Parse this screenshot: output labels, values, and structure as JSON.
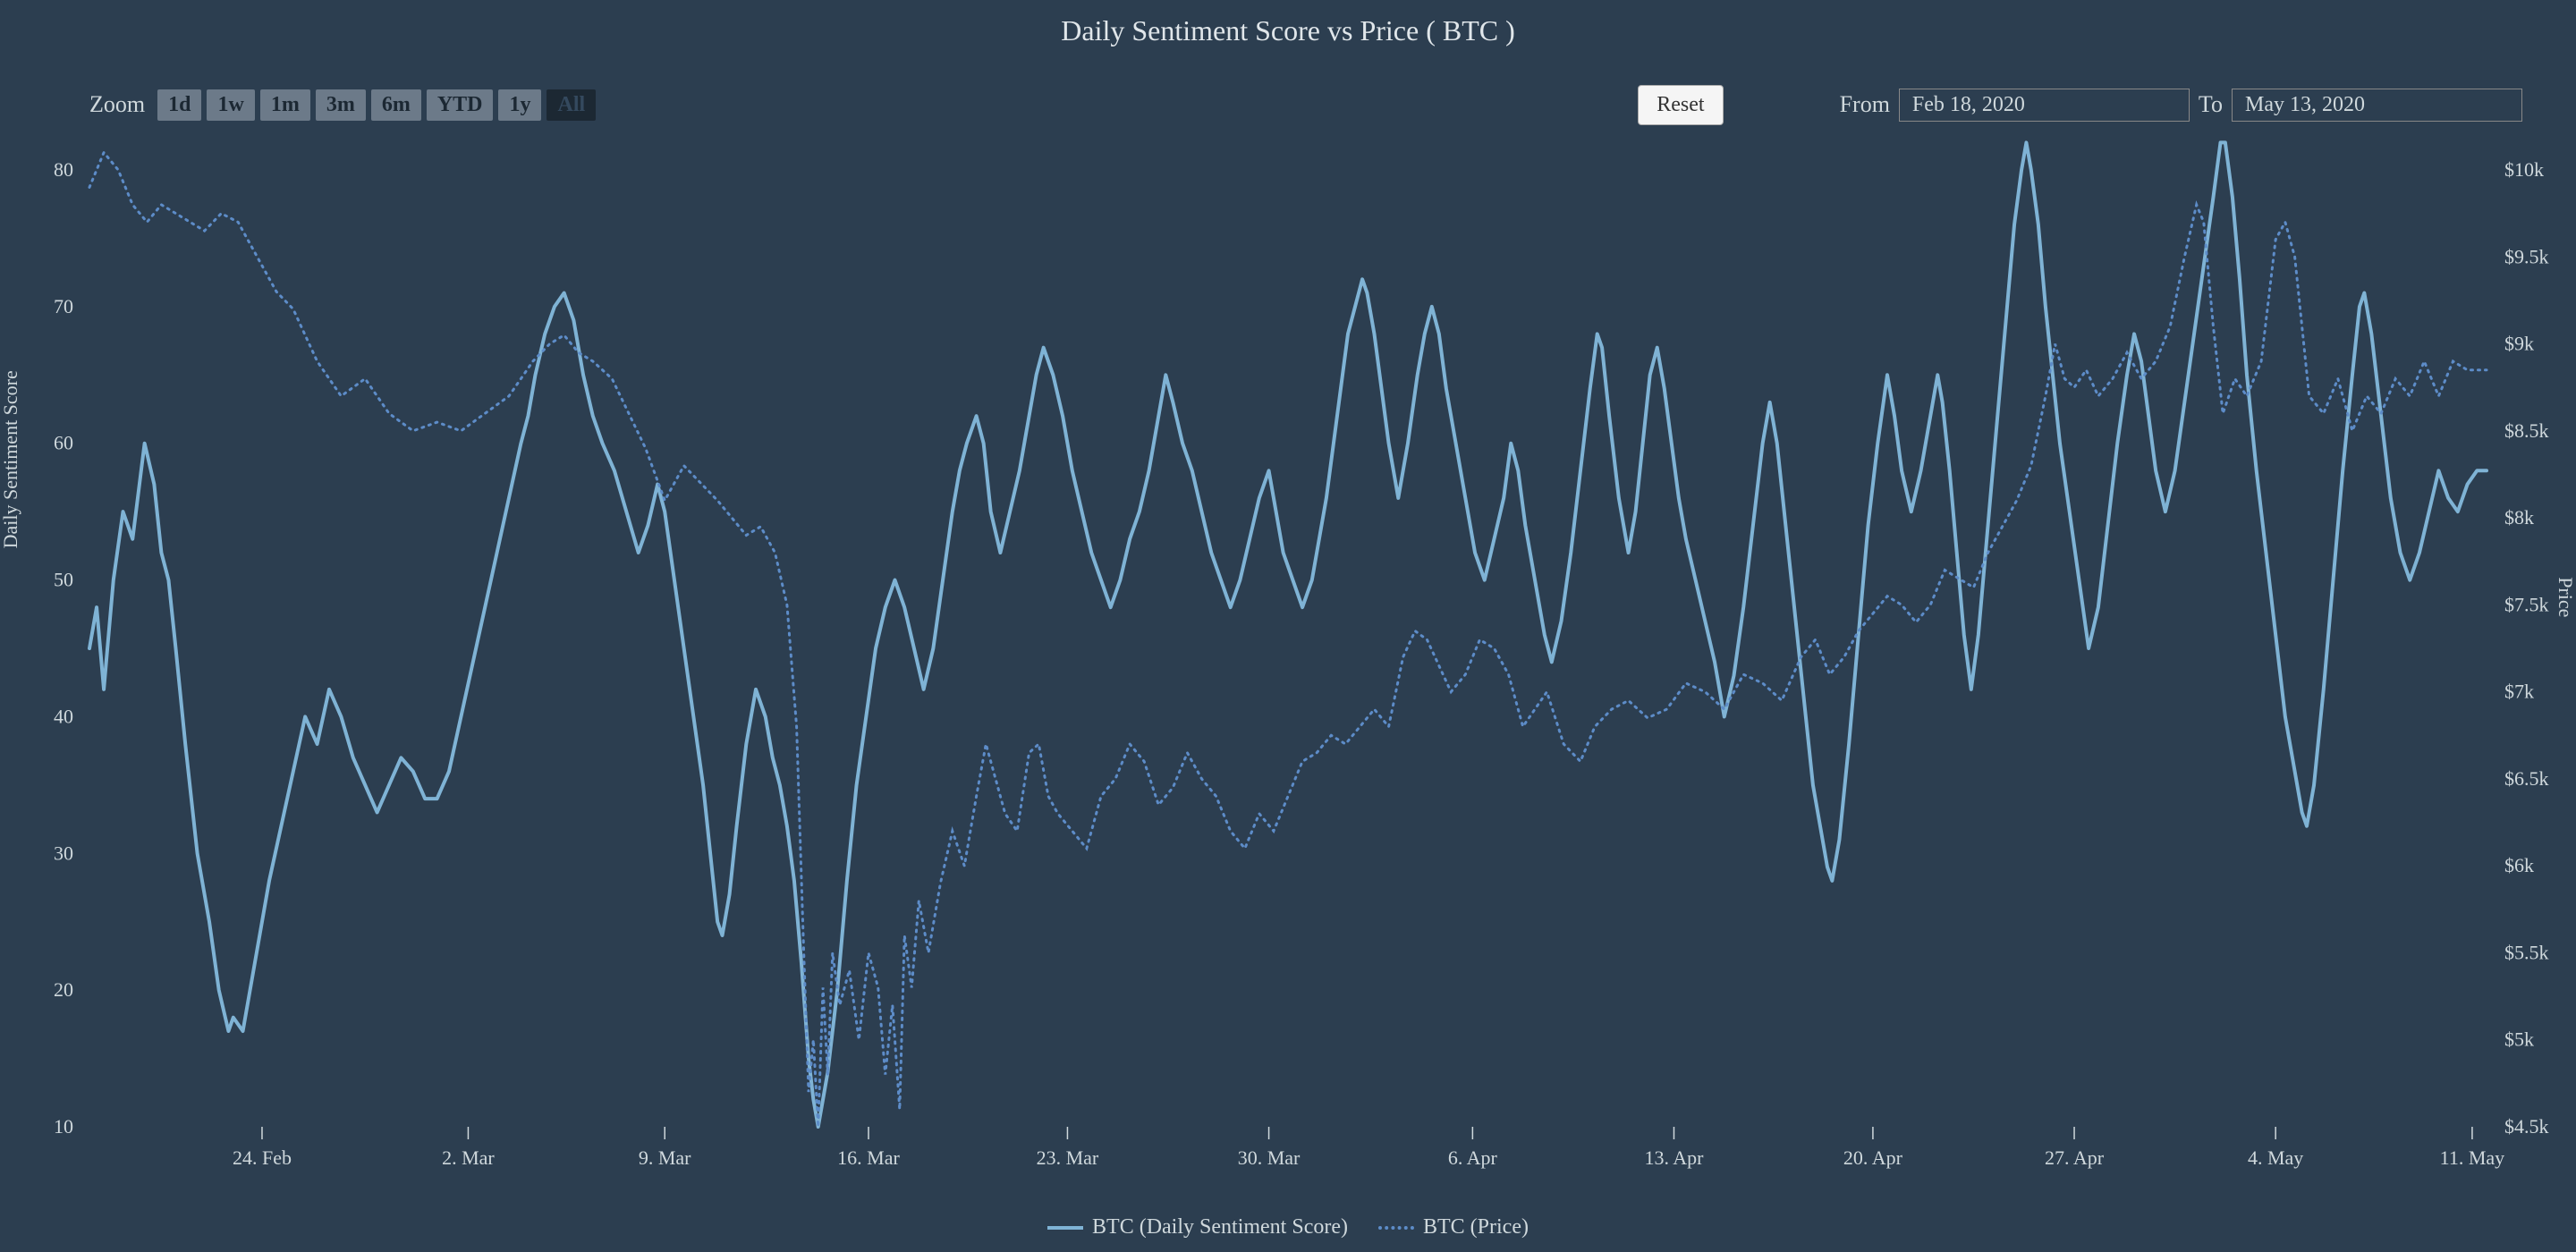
{
  "title": "Daily Sentiment Score vs Price ( BTC )",
  "zoom": {
    "label": "Zoom",
    "buttons": [
      "1d",
      "1w",
      "1m",
      "3m",
      "6m",
      "YTD",
      "1y",
      "All"
    ],
    "active_index": 7
  },
  "reset_label": "Reset",
  "date_range": {
    "from_label": "From",
    "to_label": "To",
    "from_value": "Feb 18, 2020",
    "to_value": "May 13, 2020"
  },
  "y_left": {
    "label": "Daily Sentiment Score",
    "min": 10,
    "max": 80,
    "ticks": [
      10,
      20,
      30,
      40,
      50,
      60,
      70,
      80
    ]
  },
  "y_right": {
    "label": "Price",
    "min": 4500,
    "max": 10000,
    "ticks": [
      4500,
      5000,
      5500,
      6000,
      6500,
      7000,
      7500,
      8000,
      8500,
      9000,
      9500,
      10000
    ],
    "tick_labels": [
      "$4.5k",
      "$5k",
      "$5.5k",
      "$6k",
      "$6.5k",
      "$7k",
      "$7.5k",
      "$8k",
      "$8.5k",
      "$9k",
      "$9.5k",
      "$10k"
    ]
  },
  "x_axis": {
    "tick_positions": [
      0.072,
      0.158,
      0.24,
      0.325,
      0.408,
      0.492,
      0.577,
      0.661,
      0.744,
      0.828,
      0.912,
      0.994
    ],
    "tick_labels": [
      "24. Feb",
      "2. Mar",
      "9. Mar",
      "16. Mar",
      "23. Mar",
      "30. Mar",
      "6. Apr",
      "13. Apr",
      "20. Apr",
      "27. Apr",
      "4. May",
      "11. May"
    ]
  },
  "legend": {
    "series1": "BTC (Daily Sentiment Score)",
    "series2": "BTC (Price)"
  },
  "colors": {
    "bg": "#2c3e50",
    "text": "#cfd8dc",
    "sentiment_line": "#7fb3d5",
    "price_line": "#5d8cc8"
  },
  "styling": {
    "sentiment_line_width": 4,
    "price_line_width": 3,
    "price_line_dash": "2,6",
    "title_fontsize": 32,
    "axis_fontsize": 22
  },
  "sentiment_series": [
    [
      0.0,
      45
    ],
    [
      0.003,
      48
    ],
    [
      0.006,
      42
    ],
    [
      0.01,
      50
    ],
    [
      0.014,
      55
    ],
    [
      0.018,
      53
    ],
    [
      0.023,
      60
    ],
    [
      0.027,
      57
    ],
    [
      0.03,
      52
    ],
    [
      0.033,
      50
    ],
    [
      0.036,
      45
    ],
    [
      0.04,
      38
    ],
    [
      0.045,
      30
    ],
    [
      0.05,
      25
    ],
    [
      0.054,
      20
    ],
    [
      0.058,
      17
    ],
    [
      0.06,
      18
    ],
    [
      0.064,
      17
    ],
    [
      0.069,
      22
    ],
    [
      0.075,
      28
    ],
    [
      0.08,
      32
    ],
    [
      0.085,
      36
    ],
    [
      0.09,
      40
    ],
    [
      0.095,
      38
    ],
    [
      0.1,
      42
    ],
    [
      0.105,
      40
    ],
    [
      0.11,
      37
    ],
    [
      0.115,
      35
    ],
    [
      0.12,
      33
    ],
    [
      0.125,
      35
    ],
    [
      0.13,
      37
    ],
    [
      0.135,
      36
    ],
    [
      0.14,
      34
    ],
    [
      0.145,
      34
    ],
    [
      0.15,
      36
    ],
    [
      0.155,
      40
    ],
    [
      0.16,
      44
    ],
    [
      0.165,
      48
    ],
    [
      0.17,
      52
    ],
    [
      0.175,
      56
    ],
    [
      0.18,
      60
    ],
    [
      0.183,
      62
    ],
    [
      0.186,
      65
    ],
    [
      0.19,
      68
    ],
    [
      0.194,
      70
    ],
    [
      0.198,
      71
    ],
    [
      0.202,
      69
    ],
    [
      0.206,
      65
    ],
    [
      0.21,
      62
    ],
    [
      0.214,
      60
    ],
    [
      0.219,
      58
    ],
    [
      0.224,
      55
    ],
    [
      0.229,
      52
    ],
    [
      0.233,
      54
    ],
    [
      0.237,
      57
    ],
    [
      0.24,
      55
    ],
    [
      0.244,
      50
    ],
    [
      0.248,
      45
    ],
    [
      0.252,
      40
    ],
    [
      0.256,
      35
    ],
    [
      0.259,
      30
    ],
    [
      0.262,
      25
    ],
    [
      0.264,
      24
    ],
    [
      0.267,
      27
    ],
    [
      0.27,
      32
    ],
    [
      0.274,
      38
    ],
    [
      0.278,
      42
    ],
    [
      0.282,
      40
    ],
    [
      0.285,
      37
    ],
    [
      0.288,
      35
    ],
    [
      0.291,
      32
    ],
    [
      0.294,
      28
    ],
    [
      0.297,
      22
    ],
    [
      0.3,
      15
    ],
    [
      0.302,
      12
    ],
    [
      0.304,
      10
    ],
    [
      0.308,
      14
    ],
    [
      0.312,
      20
    ],
    [
      0.316,
      28
    ],
    [
      0.32,
      35
    ],
    [
      0.324,
      40
    ],
    [
      0.328,
      45
    ],
    [
      0.332,
      48
    ],
    [
      0.336,
      50
    ],
    [
      0.34,
      48
    ],
    [
      0.344,
      45
    ],
    [
      0.348,
      42
    ],
    [
      0.352,
      45
    ],
    [
      0.356,
      50
    ],
    [
      0.36,
      55
    ],
    [
      0.363,
      58
    ],
    [
      0.366,
      60
    ],
    [
      0.37,
      62
    ],
    [
      0.373,
      60
    ],
    [
      0.376,
      55
    ],
    [
      0.38,
      52
    ],
    [
      0.384,
      55
    ],
    [
      0.388,
      58
    ],
    [
      0.392,
      62
    ],
    [
      0.395,
      65
    ],
    [
      0.398,
      67
    ],
    [
      0.402,
      65
    ],
    [
      0.406,
      62
    ],
    [
      0.41,
      58
    ],
    [
      0.414,
      55
    ],
    [
      0.418,
      52
    ],
    [
      0.422,
      50
    ],
    [
      0.426,
      48
    ],
    [
      0.43,
      50
    ],
    [
      0.434,
      53
    ],
    [
      0.438,
      55
    ],
    [
      0.442,
      58
    ],
    [
      0.446,
      62
    ],
    [
      0.449,
      65
    ],
    [
      0.452,
      63
    ],
    [
      0.456,
      60
    ],
    [
      0.46,
      58
    ],
    [
      0.464,
      55
    ],
    [
      0.468,
      52
    ],
    [
      0.472,
      50
    ],
    [
      0.476,
      48
    ],
    [
      0.48,
      50
    ],
    [
      0.484,
      53
    ],
    [
      0.488,
      56
    ],
    [
      0.492,
      58
    ],
    [
      0.495,
      55
    ],
    [
      0.498,
      52
    ],
    [
      0.502,
      50
    ],
    [
      0.506,
      48
    ],
    [
      0.51,
      50
    ],
    [
      0.513,
      53
    ],
    [
      0.516,
      56
    ],
    [
      0.519,
      60
    ],
    [
      0.522,
      64
    ],
    [
      0.525,
      68
    ],
    [
      0.528,
      70
    ],
    [
      0.531,
      72
    ],
    [
      0.533,
      71
    ],
    [
      0.536,
      68
    ],
    [
      0.539,
      64
    ],
    [
      0.542,
      60
    ],
    [
      0.546,
      56
    ],
    [
      0.55,
      60
    ],
    [
      0.554,
      65
    ],
    [
      0.557,
      68
    ],
    [
      0.56,
      70
    ],
    [
      0.563,
      68
    ],
    [
      0.566,
      64
    ],
    [
      0.57,
      60
    ],
    [
      0.574,
      56
    ],
    [
      0.578,
      52
    ],
    [
      0.582,
      50
    ],
    [
      0.586,
      53
    ],
    [
      0.59,
      56
    ],
    [
      0.593,
      60
    ],
    [
      0.596,
      58
    ],
    [
      0.599,
      54
    ],
    [
      0.603,
      50
    ],
    [
      0.607,
      46
    ],
    [
      0.61,
      44
    ],
    [
      0.614,
      47
    ],
    [
      0.618,
      52
    ],
    [
      0.622,
      58
    ],
    [
      0.626,
      64
    ],
    [
      0.629,
      68
    ],
    [
      0.631,
      67
    ],
    [
      0.634,
      62
    ],
    [
      0.638,
      56
    ],
    [
      0.642,
      52
    ],
    [
      0.645,
      55
    ],
    [
      0.648,
      60
    ],
    [
      0.651,
      65
    ],
    [
      0.654,
      67
    ],
    [
      0.657,
      64
    ],
    [
      0.66,
      60
    ],
    [
      0.663,
      56
    ],
    [
      0.666,
      53
    ],
    [
      0.67,
      50
    ],
    [
      0.674,
      47
    ],
    [
      0.678,
      44
    ],
    [
      0.682,
      40
    ],
    [
      0.686,
      43
    ],
    [
      0.69,
      48
    ],
    [
      0.694,
      54
    ],
    [
      0.698,
      60
    ],
    [
      0.701,
      63
    ],
    [
      0.704,
      60
    ],
    [
      0.707,
      55
    ],
    [
      0.71,
      50
    ],
    [
      0.713,
      45
    ],
    [
      0.716,
      40
    ],
    [
      0.719,
      35
    ],
    [
      0.722,
      32
    ],
    [
      0.725,
      29
    ],
    [
      0.727,
      28
    ],
    [
      0.73,
      31
    ],
    [
      0.734,
      38
    ],
    [
      0.738,
      46
    ],
    [
      0.742,
      54
    ],
    [
      0.746,
      60
    ],
    [
      0.75,
      65
    ],
    [
      0.753,
      62
    ],
    [
      0.756,
      58
    ],
    [
      0.76,
      55
    ],
    [
      0.764,
      58
    ],
    [
      0.768,
      62
    ],
    [
      0.771,
      65
    ],
    [
      0.773,
      63
    ],
    [
      0.776,
      58
    ],
    [
      0.779,
      52
    ],
    [
      0.782,
      46
    ],
    [
      0.785,
      42
    ],
    [
      0.788,
      46
    ],
    [
      0.792,
      54
    ],
    [
      0.796,
      62
    ],
    [
      0.8,
      70
    ],
    [
      0.803,
      76
    ],
    [
      0.806,
      80
    ],
    [
      0.808,
      82
    ],
    [
      0.81,
      80
    ],
    [
      0.813,
      76
    ],
    [
      0.816,
      70
    ],
    [
      0.819,
      65
    ],
    [
      0.822,
      60
    ],
    [
      0.826,
      55
    ],
    [
      0.83,
      50
    ],
    [
      0.834,
      45
    ],
    [
      0.838,
      48
    ],
    [
      0.842,
      54
    ],
    [
      0.846,
      60
    ],
    [
      0.85,
      65
    ],
    [
      0.853,
      68
    ],
    [
      0.856,
      66
    ],
    [
      0.859,
      62
    ],
    [
      0.862,
      58
    ],
    [
      0.866,
      55
    ],
    [
      0.87,
      58
    ],
    [
      0.874,
      63
    ],
    [
      0.878,
      68
    ],
    [
      0.882,
      73
    ],
    [
      0.886,
      78
    ],
    [
      0.889,
      82
    ],
    [
      0.891,
      82
    ],
    [
      0.894,
      78
    ],
    [
      0.897,
      72
    ],
    [
      0.9,
      65
    ],
    [
      0.904,
      58
    ],
    [
      0.908,
      52
    ],
    [
      0.912,
      46
    ],
    [
      0.916,
      40
    ],
    [
      0.92,
      36
    ],
    [
      0.923,
      33
    ],
    [
      0.925,
      32
    ],
    [
      0.928,
      35
    ],
    [
      0.932,
      42
    ],
    [
      0.936,
      50
    ],
    [
      0.94,
      58
    ],
    [
      0.944,
      65
    ],
    [
      0.947,
      70
    ],
    [
      0.949,
      71
    ],
    [
      0.952,
      68
    ],
    [
      0.956,
      62
    ],
    [
      0.96,
      56
    ],
    [
      0.964,
      52
    ],
    [
      0.968,
      50
    ],
    [
      0.972,
      52
    ],
    [
      0.976,
      55
    ],
    [
      0.98,
      58
    ],
    [
      0.984,
      56
    ],
    [
      0.988,
      55
    ],
    [
      0.992,
      57
    ],
    [
      0.996,
      58
    ],
    [
      1.0,
      58
    ]
  ],
  "price_series": [
    [
      0.0,
      9900
    ],
    [
      0.006,
      10100
    ],
    [
      0.012,
      10000
    ],
    [
      0.018,
      9800
    ],
    [
      0.024,
      9700
    ],
    [
      0.03,
      9800
    ],
    [
      0.036,
      9750
    ],
    [
      0.042,
      9700
    ],
    [
      0.048,
      9650
    ],
    [
      0.055,
      9750
    ],
    [
      0.062,
      9700
    ],
    [
      0.07,
      9500
    ],
    [
      0.078,
      9300
    ],
    [
      0.085,
      9200
    ],
    [
      0.095,
      8900
    ],
    [
      0.105,
      8700
    ],
    [
      0.115,
      8800
    ],
    [
      0.125,
      8600
    ],
    [
      0.135,
      8500
    ],
    [
      0.145,
      8550
    ],
    [
      0.155,
      8500
    ],
    [
      0.165,
      8600
    ],
    [
      0.175,
      8700
    ],
    [
      0.185,
      8900
    ],
    [
      0.192,
      9000
    ],
    [
      0.198,
      9050
    ],
    [
      0.204,
      8950
    ],
    [
      0.21,
      8900
    ],
    [
      0.218,
      8800
    ],
    [
      0.225,
      8600
    ],
    [
      0.232,
      8400
    ],
    [
      0.24,
      8100
    ],
    [
      0.248,
      8300
    ],
    [
      0.255,
      8200
    ],
    [
      0.262,
      8100
    ],
    [
      0.268,
      8000
    ],
    [
      0.274,
      7900
    ],
    [
      0.28,
      7950
    ],
    [
      0.286,
      7800
    ],
    [
      0.291,
      7500
    ],
    [
      0.295,
      6800
    ],
    [
      0.298,
      5500
    ],
    [
      0.3,
      4700
    ],
    [
      0.302,
      5000
    ],
    [
      0.304,
      4500
    ],
    [
      0.306,
      5300
    ],
    [
      0.308,
      4800
    ],
    [
      0.31,
      5500
    ],
    [
      0.313,
      5200
    ],
    [
      0.317,
      5400
    ],
    [
      0.321,
      5000
    ],
    [
      0.325,
      5500
    ],
    [
      0.329,
      5300
    ],
    [
      0.332,
      4800
    ],
    [
      0.335,
      5200
    ],
    [
      0.338,
      4600
    ],
    [
      0.34,
      5600
    ],
    [
      0.343,
      5300
    ],
    [
      0.346,
      5800
    ],
    [
      0.35,
      5500
    ],
    [
      0.355,
      5900
    ],
    [
      0.36,
      6200
    ],
    [
      0.365,
      6000
    ],
    [
      0.37,
      6400
    ],
    [
      0.374,
      6700
    ],
    [
      0.378,
      6500
    ],
    [
      0.382,
      6300
    ],
    [
      0.387,
      6200
    ],
    [
      0.392,
      6650
    ],
    [
      0.396,
      6700
    ],
    [
      0.4,
      6400
    ],
    [
      0.404,
      6300
    ],
    [
      0.41,
      6200
    ],
    [
      0.416,
      6100
    ],
    [
      0.422,
      6400
    ],
    [
      0.428,
      6500
    ],
    [
      0.434,
      6700
    ],
    [
      0.44,
      6600
    ],
    [
      0.446,
      6350
    ],
    [
      0.452,
      6450
    ],
    [
      0.458,
      6650
    ],
    [
      0.464,
      6500
    ],
    [
      0.47,
      6400
    ],
    [
      0.476,
      6200
    ],
    [
      0.482,
      6100
    ],
    [
      0.488,
      6300
    ],
    [
      0.494,
      6200
    ],
    [
      0.5,
      6400
    ],
    [
      0.506,
      6600
    ],
    [
      0.512,
      6650
    ],
    [
      0.518,
      6750
    ],
    [
      0.524,
      6700
    ],
    [
      0.53,
      6800
    ],
    [
      0.536,
      6900
    ],
    [
      0.542,
      6800
    ],
    [
      0.548,
      7200
    ],
    [
      0.553,
      7350
    ],
    [
      0.558,
      7300
    ],
    [
      0.563,
      7150
    ],
    [
      0.568,
      7000
    ],
    [
      0.574,
      7100
    ],
    [
      0.58,
      7300
    ],
    [
      0.586,
      7250
    ],
    [
      0.592,
      7100
    ],
    [
      0.598,
      6800
    ],
    [
      0.603,
      6900
    ],
    [
      0.608,
      7000
    ],
    [
      0.615,
      6700
    ],
    [
      0.622,
      6600
    ],
    [
      0.628,
      6800
    ],
    [
      0.635,
      6900
    ],
    [
      0.642,
      6950
    ],
    [
      0.65,
      6850
    ],
    [
      0.658,
      6900
    ],
    [
      0.666,
      7050
    ],
    [
      0.674,
      7000
    ],
    [
      0.682,
      6900
    ],
    [
      0.69,
      7100
    ],
    [
      0.698,
      7050
    ],
    [
      0.706,
      6950
    ],
    [
      0.714,
      7200
    ],
    [
      0.72,
      7300
    ],
    [
      0.726,
      7100
    ],
    [
      0.732,
      7200
    ],
    [
      0.738,
      7350
    ],
    [
      0.744,
      7450
    ],
    [
      0.75,
      7550
    ],
    [
      0.756,
      7500
    ],
    [
      0.762,
      7400
    ],
    [
      0.768,
      7500
    ],
    [
      0.774,
      7700
    ],
    [
      0.78,
      7650
    ],
    [
      0.786,
      7600
    ],
    [
      0.792,
      7800
    ],
    [
      0.798,
      7950
    ],
    [
      0.804,
      8100
    ],
    [
      0.81,
      8300
    ],
    [
      0.816,
      8700
    ],
    [
      0.82,
      9000
    ],
    [
      0.824,
      8800
    ],
    [
      0.828,
      8750
    ],
    [
      0.833,
      8850
    ],
    [
      0.838,
      8700
    ],
    [
      0.844,
      8800
    ],
    [
      0.85,
      8950
    ],
    [
      0.856,
      8800
    ],
    [
      0.862,
      8900
    ],
    [
      0.868,
      9100
    ],
    [
      0.874,
      9500
    ],
    [
      0.879,
      9800
    ],
    [
      0.882,
      9700
    ],
    [
      0.886,
      9100
    ],
    [
      0.89,
      8600
    ],
    [
      0.895,
      8800
    ],
    [
      0.9,
      8700
    ],
    [
      0.906,
      8900
    ],
    [
      0.912,
      9600
    ],
    [
      0.916,
      9700
    ],
    [
      0.92,
      9500
    ],
    [
      0.926,
      8700
    ],
    [
      0.932,
      8600
    ],
    [
      0.938,
      8800
    ],
    [
      0.944,
      8500
    ],
    [
      0.95,
      8700
    ],
    [
      0.956,
      8600
    ],
    [
      0.962,
      8800
    ],
    [
      0.968,
      8700
    ],
    [
      0.974,
      8900
    ],
    [
      0.98,
      8700
    ],
    [
      0.986,
      8900
    ],
    [
      0.992,
      8850
    ],
    [
      1.0,
      8850
    ]
  ]
}
